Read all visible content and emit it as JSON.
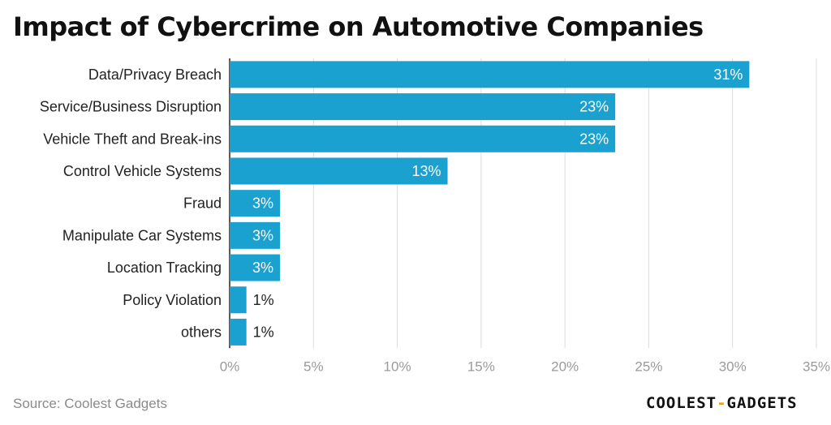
{
  "chart_data": {
    "type": "bar",
    "orientation": "horizontal",
    "title": "Impact of Cybercrime on Automotive Companies",
    "categories": [
      "Data/Privacy Breach",
      "Service/Business Disruption",
      "Vehicle Theft and Break-ins",
      "Control Vehicle Systems",
      "Fraud",
      "Manipulate Car Systems",
      "Location Tracking",
      "Policy Violation",
      "others"
    ],
    "values": [
      31,
      23,
      23,
      13,
      3,
      3,
      3,
      1,
      1
    ],
    "value_labels": [
      "31%",
      "23%",
      "23%",
      "13%",
      "3%",
      "3%",
      "3%",
      "1%",
      "1%"
    ],
    "xlim": [
      0,
      35
    ],
    "xticks": [
      0,
      5,
      10,
      15,
      20,
      25,
      30,
      35
    ],
    "xtick_labels": [
      "0%",
      "5%",
      "10%",
      "15%",
      "20%",
      "25%",
      "30%",
      "35%"
    ],
    "grid": "vertical",
    "bar_color": "#1ba1cf",
    "xlabel": "",
    "ylabel": ""
  },
  "footer": {
    "source": "Source: Coolest Gadgets",
    "logo_left": "COOLEST",
    "logo_dash": "-",
    "logo_right": "GADGETS"
  }
}
